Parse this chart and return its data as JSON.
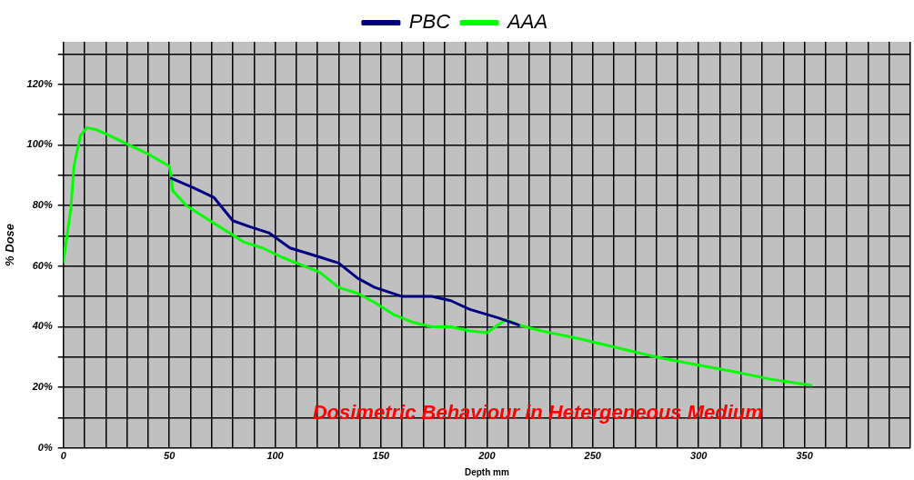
{
  "chart_data": {
    "type": "line",
    "xlabel": "Depth mm",
    "ylabel": "% Dose",
    "annotations": [
      "Dosimetric Behaviour in Hetergeneous Medium"
    ],
    "xlim": [
      0,
      400
    ],
    "xticks": [
      0,
      {
        "value": 10,
        "label": null
      },
      {
        "value": 20,
        "label": null
      },
      {
        "value": 30,
        "label": null
      },
      {
        "value": 40,
        "label": null
      },
      50,
      {
        "value": 60,
        "label": null
      },
      {
        "value": 70,
        "label": null
      },
      {
        "value": 80,
        "label": null
      },
      {
        "value": 90,
        "label": null
      },
      100,
      {
        "value": 110,
        "label": null
      },
      {
        "value": 120,
        "label": null
      },
      {
        "value": 130,
        "label": null
      },
      {
        "value": 140,
        "label": null
      },
      150,
      {
        "value": 160,
        "label": null
      },
      {
        "value": 170,
        "label": null
      },
      {
        "value": 180,
        "label": null
      },
      {
        "value": 190,
        "label": null
      },
      200,
      {
        "value": 210,
        "label": null
      },
      {
        "value": 220,
        "label": null
      },
      {
        "value": 230,
        "label": null
      },
      {
        "value": 240,
        "label": null
      },
      250,
      {
        "value": 260,
        "label": null
      },
      {
        "value": 270,
        "label": null
      },
      {
        "value": 280,
        "label": null
      },
      {
        "value": 290,
        "label": null
      },
      300,
      {
        "value": 310,
        "label": null
      },
      {
        "value": 320,
        "label": null
      },
      {
        "value": 330,
        "label": null
      },
      {
        "value": 340,
        "label": null
      },
      350,
      {
        "value": 360,
        "label": null
      },
      {
        "value": 370,
        "label": null
      },
      {
        "value": 380,
        "label": null
      },
      {
        "value": 390,
        "label": null
      },
      {
        "value": 400,
        "label": null
      }
    ],
    "ylim": [
      0,
      134
    ],
    "yticks": [
      {
        "value": 0,
        "label": "0%"
      },
      {
        "value": 10,
        "label": null
      },
      {
        "value": 20,
        "label": "20%"
      },
      {
        "value": 30,
        "label": null
      },
      {
        "value": 40,
        "label": "40%"
      },
      {
        "value": 50,
        "label": null
      },
      {
        "value": 60,
        "label": "60%"
      },
      {
        "value": 70,
        "label": null
      },
      {
        "value": 80,
        "label": "80%"
      },
      {
        "value": 90,
        "label": null
      },
      {
        "value": 100,
        "label": "100%"
      },
      {
        "value": 110,
        "label": null
      },
      {
        "value": 120,
        "label": "120%"
      },
      {
        "value": 130,
        "label": null
      }
    ],
    "grid": true,
    "legend": "top",
    "marker": "none",
    "line_style": "solid",
    "series": [
      {
        "name": "PBC",
        "color": "#000080",
        "x": [
          51,
          61,
          71,
          80,
          88,
          97,
          107,
          121,
          130,
          139,
          147,
          160,
          174,
          183,
          192,
          205,
          215
        ],
        "values": [
          89,
          86,
          82.7,
          75,
          73,
          71,
          66,
          63,
          61,
          56,
          53,
          50,
          50,
          48.6,
          45.7,
          43,
          40.6
        ]
      },
      {
        "name": "AAA",
        "color": "#00ff00",
        "x": [
          0,
          3.5,
          5,
          8,
          11,
          15.6,
          22,
          31,
          40,
          50,
          51,
          51.5,
          58,
          67,
          76,
          85,
          94,
          103,
          112,
          121,
          130,
          139,
          147,
          156,
          165,
          174,
          183,
          192,
          200,
          204,
          209,
          215,
          226,
          244,
          262,
          280,
          298,
          316,
          334,
          353
        ],
        "values": [
          61.4,
          79,
          93,
          103,
          105.7,
          105,
          103,
          100,
          97,
          93,
          89,
          85,
          80,
          76,
          72,
          68,
          66,
          63,
          60.5,
          58,
          53,
          51,
          48,
          44,
          41.5,
          40,
          40,
          38.6,
          38,
          40,
          42.3,
          40.6,
          38.6,
          36,
          33,
          30,
          27.6,
          25.3,
          22.7,
          20.7
        ]
      }
    ]
  }
}
